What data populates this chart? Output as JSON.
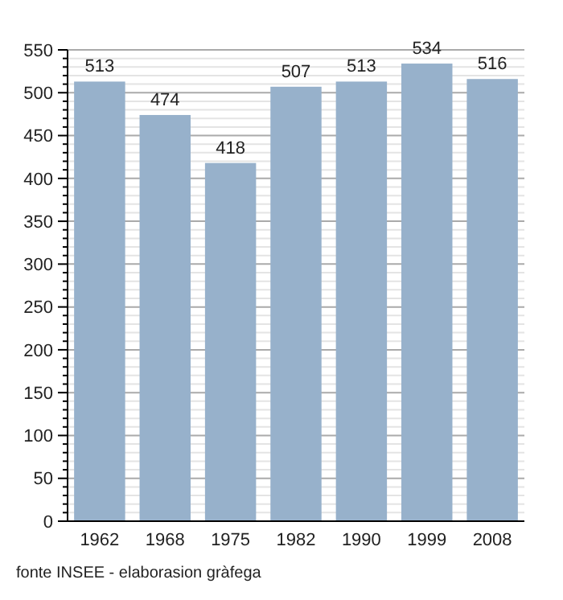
{
  "chart_data": {
    "type": "bar",
    "categories": [
      "1962",
      "1968",
      "1975",
      "1982",
      "1990",
      "1999",
      "2008"
    ],
    "values": [
      513,
      474,
      418,
      507,
      513,
      534,
      516
    ],
    "color": "#97b1cb",
    "data_labels": true,
    "grid": "y",
    "ylim": [
      0,
      550
    ],
    "yticks": [
      0,
      {
        "value": 10,
        "label": null
      },
      {
        "value": 20,
        "label": null
      },
      {
        "value": 30,
        "label": null
      },
      {
        "value": 40,
        "label": null
      },
      50,
      {
        "value": 60,
        "label": null
      },
      {
        "value": 70,
        "label": null
      },
      {
        "value": 80,
        "label": null
      },
      {
        "value": 90,
        "label": null
      },
      100,
      {
        "value": 110,
        "label": null
      },
      {
        "value": 120,
        "label": null
      },
      {
        "value": 130,
        "label": null
      },
      {
        "value": 140,
        "label": null
      },
      150,
      {
        "value": 160,
        "label": null
      },
      {
        "value": 170,
        "label": null
      },
      {
        "value": 180,
        "label": null
      },
      {
        "value": 190,
        "label": null
      },
      200,
      {
        "value": 210,
        "label": null
      },
      {
        "value": 220,
        "label": null
      },
      {
        "value": 230,
        "label": null
      },
      {
        "value": 240,
        "label": null
      },
      250,
      {
        "value": 260,
        "label": null
      },
      {
        "value": 270,
        "label": null
      },
      {
        "value": 280,
        "label": null
      },
      {
        "value": 290,
        "label": null
      },
      300,
      {
        "value": 310,
        "label": null
      },
      {
        "value": 320,
        "label": null
      },
      {
        "value": 330,
        "label": null
      },
      {
        "value": 340,
        "label": null
      },
      350,
      {
        "value": 360,
        "label": null
      },
      {
        "value": 370,
        "label": null
      },
      {
        "value": 380,
        "label": null
      },
      {
        "value": 390,
        "label": null
      },
      400,
      {
        "value": 410,
        "label": null
      },
      {
        "value": 420,
        "label": null
      },
      {
        "value": 430,
        "label": null
      },
      {
        "value": 440,
        "label": null
      },
      450,
      {
        "value": 460,
        "label": null
      },
      {
        "value": 470,
        "label": null
      },
      {
        "value": 480,
        "label": null
      },
      {
        "value": 490,
        "label": null
      },
      500,
      {
        "value": 510,
        "label": null
      },
      {
        "value": 520,
        "label": null
      },
      {
        "value": 530,
        "label": null
      },
      {
        "value": 540,
        "label": null
      },
      550
    ],
    "annotations": [
      "fonte INSEE - elaborasion gràfega"
    ]
  }
}
